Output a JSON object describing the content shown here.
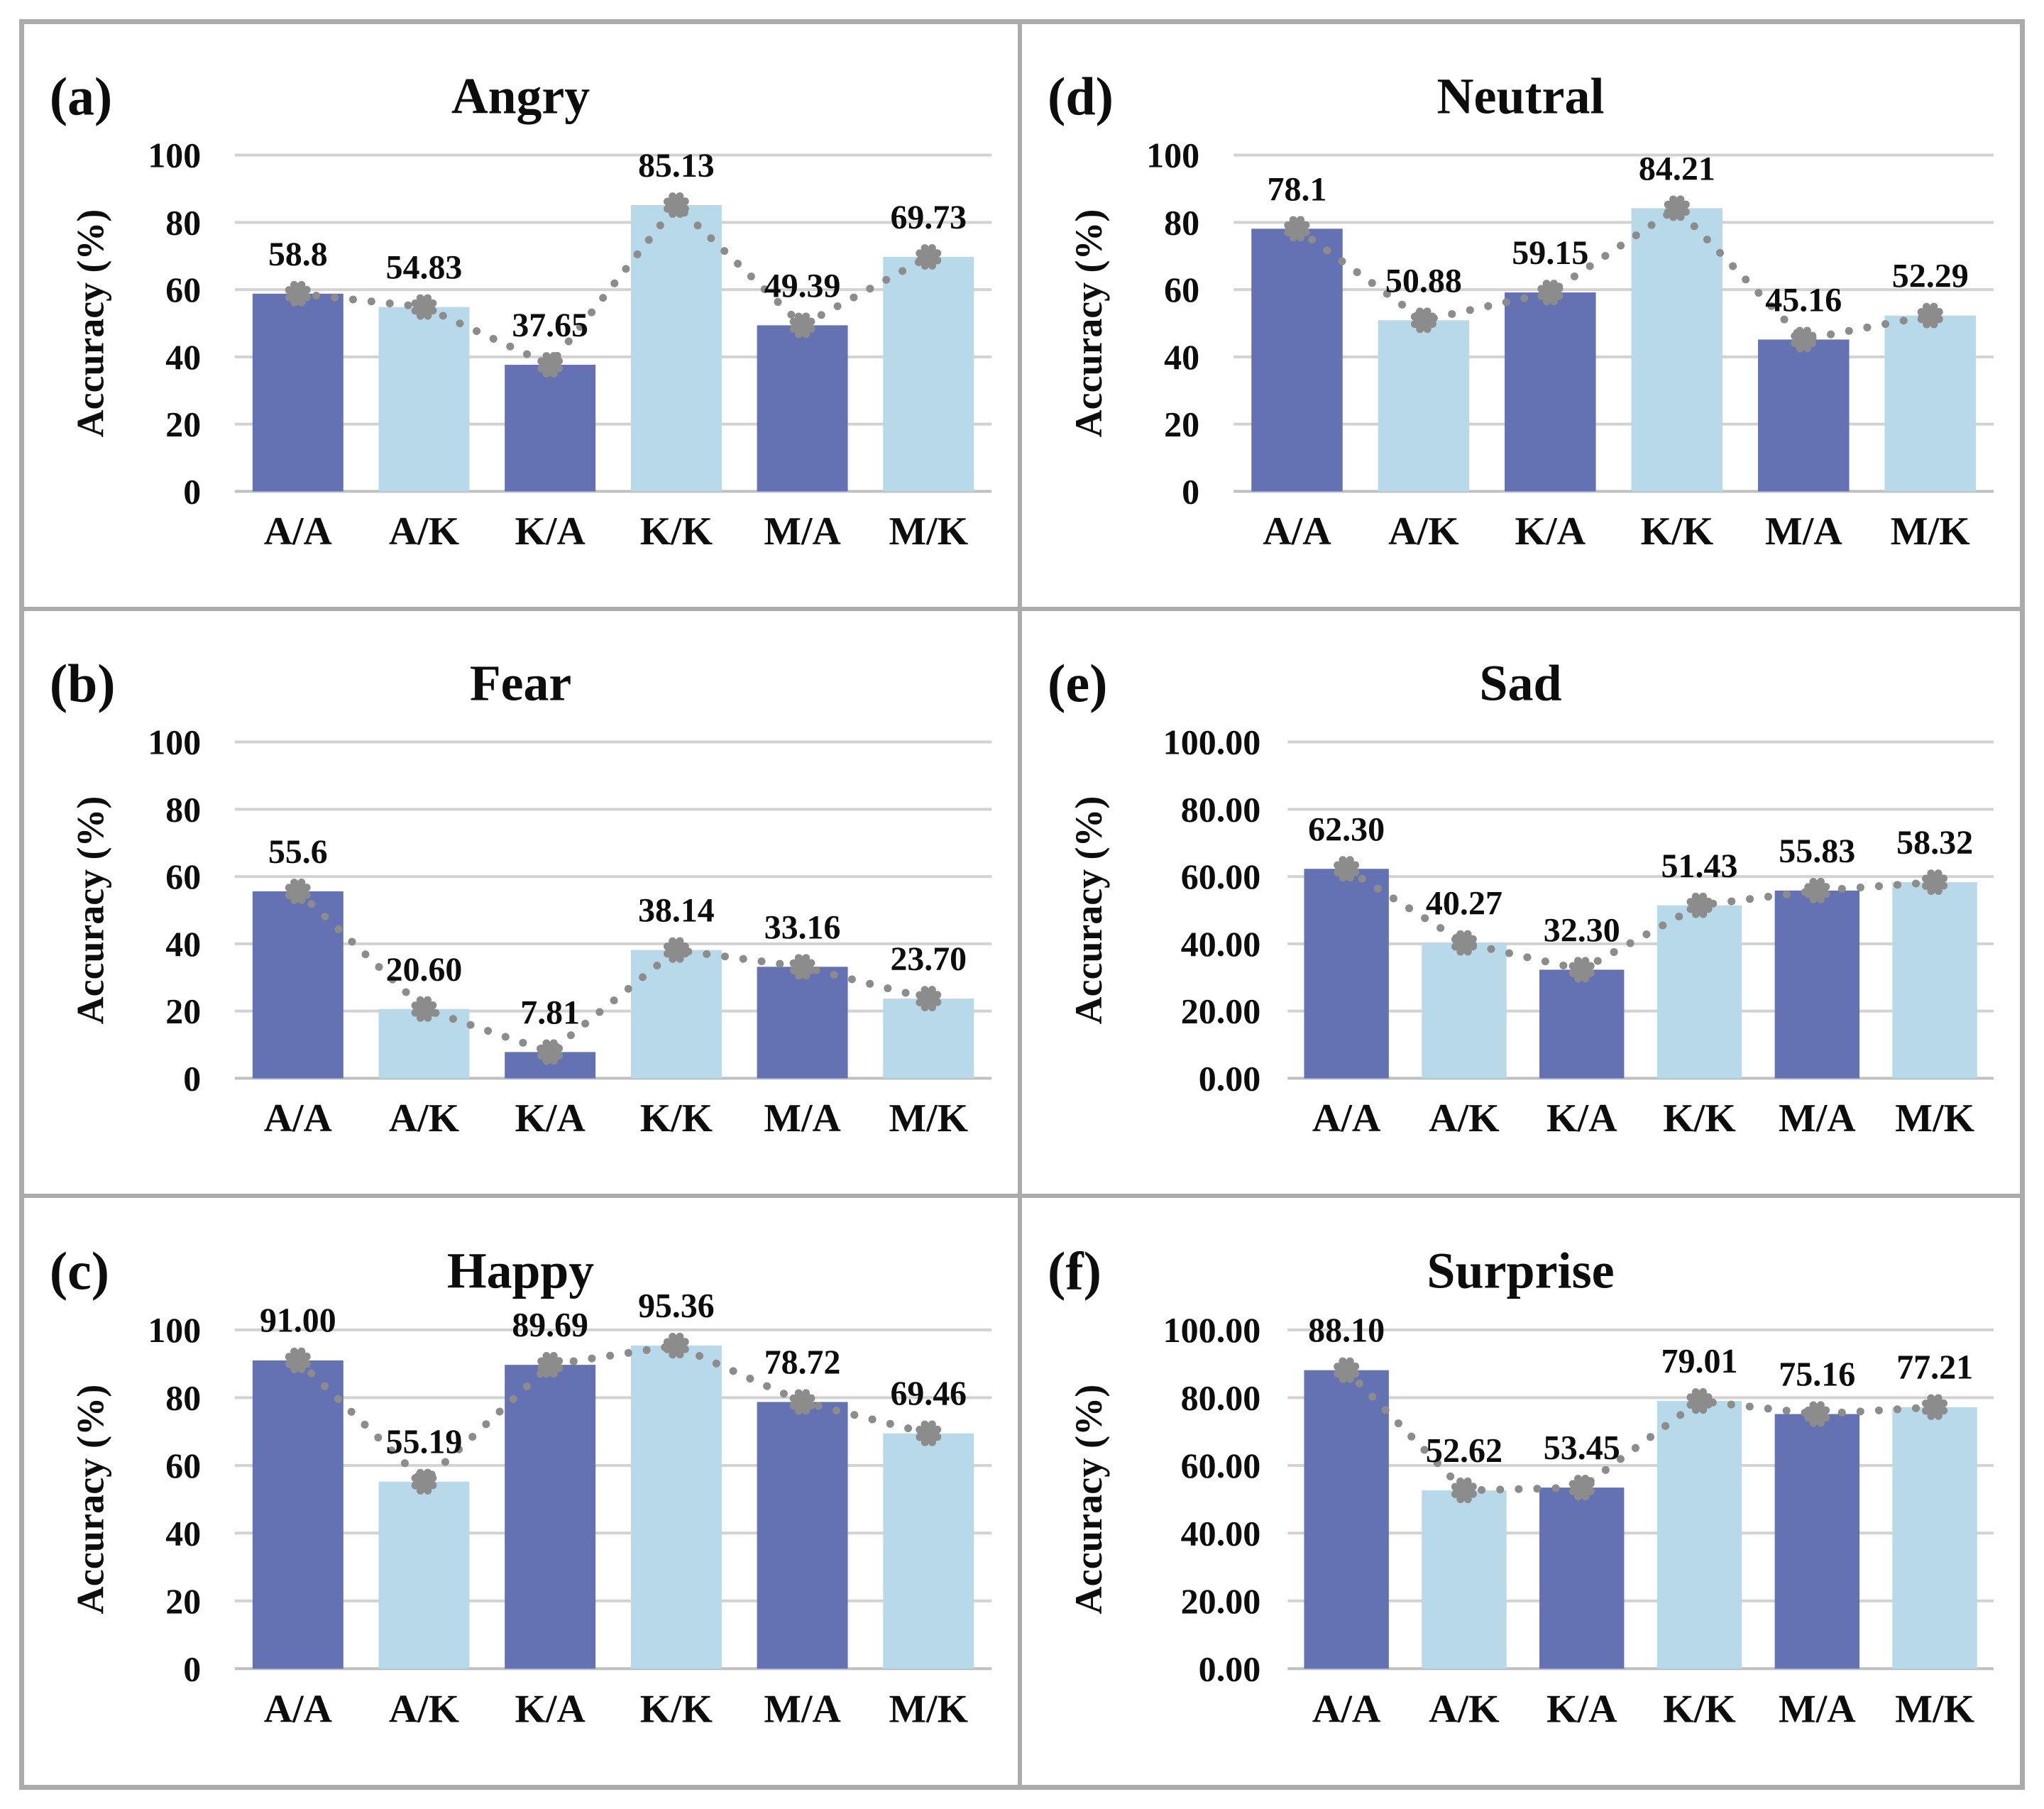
{
  "figure": {
    "description": "Six-panel bar chart figure of emotion recognition accuracy",
    "border_color": "#ababab",
    "background": "#ffffff"
  },
  "colors": {
    "bar_dark": "#6471b3",
    "bar_light": "#b7d9ea",
    "trend_gray": "#8c8c8c",
    "gridline": "#d2d2d2",
    "baseline": "#c0c0c0",
    "text": "#0d0d0d"
  },
  "ylabel": "Accuracy (%)",
  "categories": [
    "A/A",
    "A/K",
    "K/A",
    "K/K",
    "M/A",
    "M/K"
  ],
  "chart_data": [
    {
      "type": "bar+line",
      "panel_label": "(a)",
      "title": "Angry",
      "categories": [
        "A/A",
        "A/K",
        "K/A",
        "K/K",
        "M/A",
        "M/K"
      ],
      "values": [
        58.8,
        54.83,
        37.65,
        85.13,
        49.39,
        69.73
      ],
      "value_labels": [
        "58.8",
        "54.83",
        "37.65",
        "85.13",
        "49.39",
        "69.73"
      ],
      "ytick_labels": [
        "0",
        "20",
        "40",
        "60",
        "80",
        "100"
      ],
      "ylim": [
        0,
        100
      ],
      "grid": "horizontal",
      "legend": "none"
    },
    {
      "type": "bar+line",
      "panel_label": "(d)",
      "title": "Neutral",
      "categories": [
        "A/A",
        "A/K",
        "K/A",
        "K/K",
        "M/A",
        "M/K"
      ],
      "values": [
        78.1,
        50.88,
        59.15,
        84.21,
        45.16,
        52.29
      ],
      "value_labels": [
        "78.1",
        "50.88",
        "59.15",
        "84.21",
        "45.16",
        "52.29"
      ],
      "ytick_labels": [
        "0",
        "20",
        "40",
        "60",
        "80",
        "100"
      ],
      "ylim": [
        0,
        100
      ],
      "grid": "horizontal",
      "legend": "none"
    },
    {
      "type": "bar+line",
      "panel_label": "(b)",
      "title": "Fear",
      "categories": [
        "A/A",
        "A/K",
        "K/A",
        "K/K",
        "M/A",
        "M/K"
      ],
      "values": [
        55.6,
        20.6,
        7.81,
        38.14,
        33.16,
        23.7
      ],
      "value_labels": [
        "55.6",
        "20.60",
        "7.81",
        "38.14",
        "33.16",
        "23.70"
      ],
      "ytick_labels": [
        "0",
        "20",
        "40",
        "60",
        "80",
        "100"
      ],
      "ylim": [
        0,
        100
      ],
      "grid": "horizontal",
      "legend": "none"
    },
    {
      "type": "bar+line",
      "panel_label": "(e)",
      "title": "Sad",
      "categories": [
        "A/A",
        "A/K",
        "K/A",
        "K/K",
        "M/A",
        "M/K"
      ],
      "values": [
        62.3,
        40.27,
        32.3,
        51.43,
        55.83,
        58.32
      ],
      "value_labels": [
        "62.30",
        "40.27",
        "32.30",
        "51.43",
        "55.83",
        "58.32"
      ],
      "ytick_labels": [
        "0.00",
        "20.00",
        "40.00",
        "60.00",
        "80.00",
        "100.00"
      ],
      "ylim": [
        0,
        100
      ],
      "grid": "horizontal",
      "legend": "none"
    },
    {
      "type": "bar+line",
      "panel_label": "(c)",
      "title": "Happy",
      "categories": [
        "A/A",
        "A/K",
        "K/A",
        "K/K",
        "M/A",
        "M/K"
      ],
      "values": [
        91.0,
        55.19,
        89.69,
        95.36,
        78.72,
        69.46
      ],
      "value_labels": [
        "91.00",
        "55.19",
        "89.69",
        "95.36",
        "78.72",
        "69.46"
      ],
      "ytick_labels": [
        "0",
        "20",
        "40",
        "60",
        "80",
        "100"
      ],
      "ylim": [
        0,
        100
      ],
      "grid": "horizontal",
      "legend": "none"
    },
    {
      "type": "bar+line",
      "panel_label": "(f)",
      "title": "Surprise",
      "categories": [
        "A/A",
        "A/K",
        "K/A",
        "K/K",
        "M/A",
        "M/K"
      ],
      "values": [
        88.1,
        52.62,
        53.45,
        79.01,
        75.16,
        77.21
      ],
      "value_labels": [
        "88.10",
        "52.62",
        "53.45",
        "79.01",
        "75.16",
        "77.21"
      ],
      "ytick_labels": [
        "0.00",
        "20.00",
        "40.00",
        "60.00",
        "80.00",
        "100.00"
      ],
      "ylim": [
        0,
        100
      ],
      "grid": "horizontal",
      "legend": "none"
    }
  ]
}
